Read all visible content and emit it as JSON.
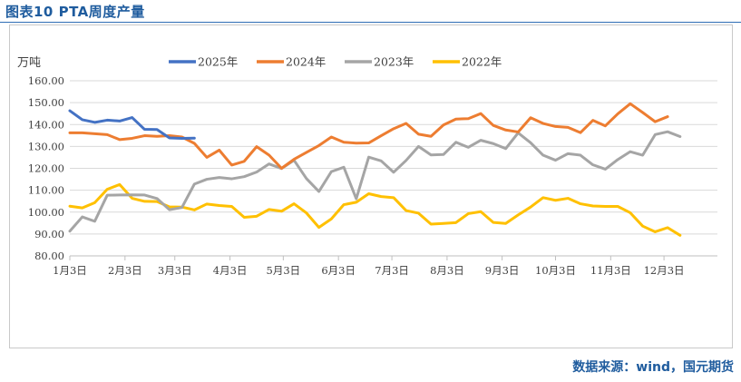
{
  "figure_title": "图表10   PTA周度产量",
  "source_text": "数据来源：wind，国元期货",
  "colors": {
    "2025": "#4472c4",
    "2024": "#ed7d31",
    "2023": "#a5a5a5",
    "2022": "#ffc000",
    "title": "#1f5c9e",
    "grid": "#d9d9d9"
  },
  "chart_data": {
    "type": "line",
    "unit_label": "万吨",
    "ylim": [
      80,
      160
    ],
    "yticks": [
      "160.00",
      "150.00",
      "140.00",
      "130.00",
      "120.00",
      "110.00",
      "100.00",
      "90.00",
      "80.00"
    ],
    "xticks": [
      "1月3日",
      "2月3日",
      "3月3日",
      "4月3日",
      "5月3日",
      "6月3日",
      "7月3日",
      "8月3日",
      "9月3日",
      "10月3日",
      "11月3日",
      "12月3日"
    ],
    "x_week_range": [
      0,
      52
    ],
    "xtick_weeks": [
      0,
      4.43,
      8.43,
      12.86,
      17.14,
      21.57,
      25.86,
      30.29,
      34.71,
      39,
      43.43,
      47.71
    ],
    "grid": "horizontal",
    "legend_position": "top",
    "series": [
      {
        "name": "2025年",
        "key": "2025",
        "values": [
          146.3,
          142.2,
          141,
          142,
          141.6,
          143.2,
          137.8,
          137.7,
          133.9,
          133.7,
          133.8
        ]
      },
      {
        "name": "2024年",
        "key": "2024",
        "values": [
          136.2,
          136.2,
          135.8,
          135.4,
          133.1,
          133.7,
          134.9,
          134.6,
          134.9,
          134.3,
          131.4,
          125,
          128.3,
          121.5,
          123.2,
          129.9,
          126,
          120,
          124.1,
          127.3,
          130.4,
          134.3,
          131.9,
          131.5,
          131.6,
          134.9,
          138.1,
          140.5,
          135.6,
          134.6,
          139.8,
          142.5,
          142.7,
          145,
          139.6,
          137.5,
          136.6,
          143.1,
          140.5,
          139.1,
          138.7,
          136.3,
          141.9,
          139.4,
          144.9,
          149.5,
          145.5,
          141.3,
          143.6
        ]
      },
      {
        "name": "2023年",
        "key": "2023",
        "values": [
          91.3,
          97.8,
          95.8,
          107.7,
          107.8,
          107.9,
          107.8,
          106.2,
          101.1,
          102.1,
          112.8,
          115,
          115.8,
          115.2,
          116.2,
          118.3,
          122,
          119.9,
          123.7,
          115.3,
          109.4,
          118.5,
          120.5,
          106.1,
          125.1,
          123.4,
          118.2,
          123.6,
          130,
          126.1,
          126.3,
          131.9,
          129.6,
          132.8,
          131.3,
          129,
          136.2,
          131.7,
          126,
          123.7,
          126.7,
          126,
          121.6,
          119.6,
          124,
          127.6,
          126,
          135.4,
          136.7,
          134.5
        ]
      },
      {
        "name": "2022年",
        "key": "2022",
        "values": [
          102.7,
          101.9,
          104.3,
          110.4,
          112.6,
          106.3,
          104.9,
          104.8,
          102.4,
          102.3,
          101,
          103.7,
          103,
          102.6,
          97.6,
          98.1,
          101.2,
          100.4,
          103.8,
          99.6,
          93,
          96.9,
          103.4,
          104.5,
          108.4,
          107.1,
          106.6,
          100.7,
          99.5,
          94.5,
          94.8,
          95.2,
          99.3,
          100.2,
          95.3,
          94.8,
          98.7,
          102.3,
          106.6,
          105.4,
          106.3,
          103.8,
          102.8,
          102.6,
          102.6,
          99.7,
          93.6,
          91,
          92.9,
          89.4
        ]
      }
    ]
  }
}
